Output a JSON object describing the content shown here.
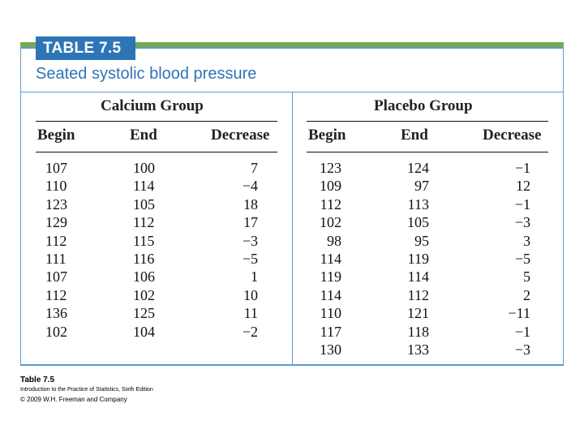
{
  "table": {
    "number_tab": "TABLE 7.5",
    "caption": "Seated systolic blood pressure",
    "calcium": {
      "group_label": "Calcium Group",
      "headers": [
        "Begin",
        "End",
        "Decrease"
      ],
      "begin": [
        "107",
        "110",
        "123",
        "129",
        "112",
        "111",
        "107",
        "112",
        "136",
        "102"
      ],
      "end": [
        "100",
        "114",
        "105",
        "112",
        "115",
        "116",
        "106",
        "102",
        "125",
        "104"
      ],
      "decrease": [
        "7",
        "−4",
        "18",
        "17",
        "−3",
        "−5",
        "1",
        "10",
        "11",
        "−2"
      ]
    },
    "placebo": {
      "group_label": "Placebo Group",
      "headers": [
        "Begin",
        "End",
        "Decrease"
      ],
      "begin": [
        "123",
        "109",
        "112",
        "102",
        "98",
        "114",
        "119",
        "114",
        "110",
        "117",
        "130"
      ],
      "end": [
        "124",
        "97",
        "113",
        "105",
        "95",
        "119",
        "114",
        "112",
        "121",
        "118",
        "133"
      ],
      "decrease": [
        "−1",
        "12",
        "−1",
        "−3",
        "3",
        "−5",
        "5",
        "2",
        "−11",
        "−1",
        "−3"
      ]
    }
  },
  "footer": {
    "title": "Table 7.5",
    "source": "Introduction to the Practice of Statistics, Sixth Edition",
    "copyright": "© 2009 W.H. Freeman and Company"
  },
  "colors": {
    "accent_blue": "#2e75b6",
    "rule_blue": "#5b9bd5",
    "strip_green": "#78a94a"
  }
}
